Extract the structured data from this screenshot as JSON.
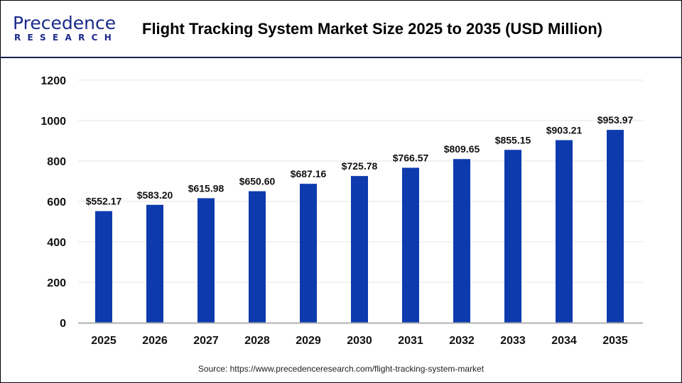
{
  "logo": {
    "top": "Precedence",
    "bottom": "RESEARCH"
  },
  "title": "Flight Tracking System Market Size 2025 to 2035 (USD Million)",
  "source": "Source: https://www.precedenceresearch.com/flight-tracking-system-market",
  "colors": {
    "bar": "#0d3aad",
    "header_line": "#1a1f4d"
  },
  "chart_data": {
    "type": "bar",
    "title": "Flight Tracking System Market Size 2025 to 2035 (USD Million)",
    "categories": [
      "2025",
      "2026",
      "2027",
      "2028",
      "2029",
      "2030",
      "2031",
      "2032",
      "2033",
      "2034",
      "2035"
    ],
    "values": [
      552.17,
      583.2,
      615.98,
      650.6,
      687.16,
      725.78,
      766.57,
      809.65,
      855.15,
      903.21,
      953.97
    ],
    "data_labels": [
      "$552.17",
      "$583.20",
      "$615.98",
      "$650.60",
      "$687.16",
      "$725.78",
      "$766.57",
      "$809.65",
      "$855.15",
      "$903.21",
      "$953.97"
    ],
    "yticks": [
      "0",
      "200",
      "400",
      "600",
      "800",
      "1000",
      "1200"
    ],
    "ylim": [
      0,
      1200
    ],
    "grid": true,
    "xlabel": "",
    "ylabel": ""
  }
}
